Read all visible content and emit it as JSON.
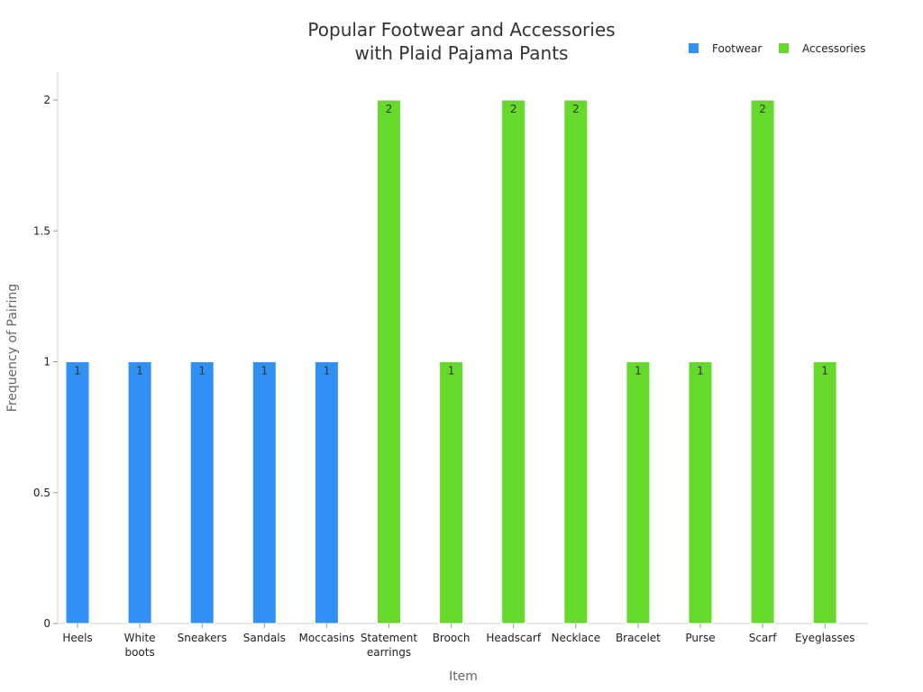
{
  "chart_data": {
    "type": "bar",
    "title": [
      "Popular Footwear and Accessories",
      "with Plaid Pajama Pants"
    ],
    "xlabel": "Item",
    "ylabel": "Frequency of Pairing",
    "ylim": [
      0,
      2
    ],
    "yticks": [
      "0",
      "0.5",
      "1",
      "1.5",
      "2"
    ],
    "ytick_values": [
      0,
      0.5,
      1,
      1.5,
      2
    ],
    "grid": false,
    "legend_position": "top-right",
    "categories": [
      [
        "Heels"
      ],
      [
        "White",
        "boots"
      ],
      [
        "Sneakers"
      ],
      [
        "Sandals"
      ],
      [
        "Moccasins"
      ],
      [
        "Statement",
        "earrings"
      ],
      [
        "Brooch"
      ],
      [
        "Headscarf"
      ],
      [
        "Necklace"
      ],
      [
        "Bracelet"
      ],
      [
        "Purse"
      ],
      [
        "Scarf"
      ],
      [
        "Eyeglasses"
      ]
    ],
    "series": [
      {
        "name": "Footwear",
        "color": "#3190F5",
        "values": [
          1,
          1,
          1,
          1,
          1,
          null,
          null,
          null,
          null,
          null,
          null,
          null,
          null
        ],
        "labels": [
          "1",
          "1",
          "1",
          "1",
          "1",
          "",
          "",
          "",
          "",
          "",
          "",
          "",
          ""
        ]
      },
      {
        "name": "Accessories",
        "color": "#66DA2A",
        "values": [
          null,
          null,
          null,
          null,
          null,
          2,
          1,
          2,
          2,
          1,
          1,
          2,
          1
        ],
        "labels": [
          "",
          "",
          "",
          "",
          "",
          "2",
          "1",
          "2",
          "2",
          "1",
          "1",
          "2",
          "1"
        ]
      }
    ]
  }
}
